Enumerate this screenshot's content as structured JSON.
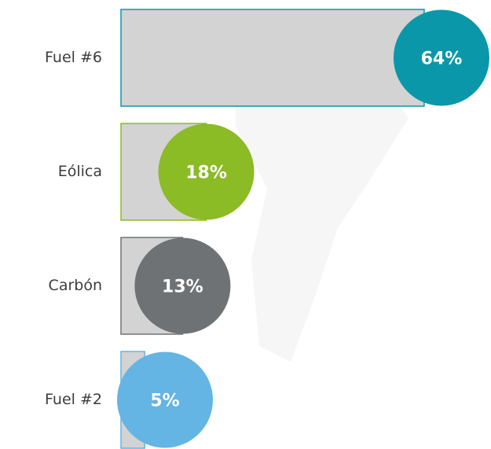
{
  "chart_data": {
    "type": "bar",
    "orientation": "horizontal",
    "categories": [
      "Fuel #6",
      "Eólica",
      "Carbón",
      "Fuel #2"
    ],
    "values": [
      64,
      18,
      13,
      5
    ],
    "value_labels": [
      "64%",
      "18%",
      "13%",
      "5%"
    ],
    "colors": [
      "#0a97a9",
      "#8bbb25",
      "#6f7275",
      "#64b4e4"
    ]
  }
}
